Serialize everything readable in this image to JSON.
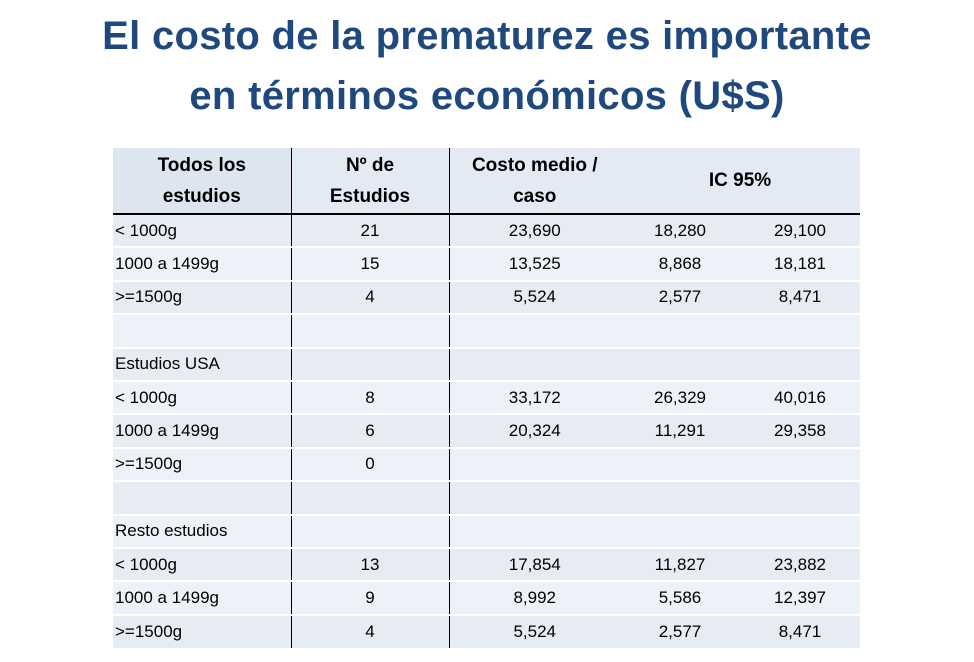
{
  "title": {
    "line1": "El costo de la prematurez es importante",
    "line2": "en términos económicos (U$S)"
  },
  "table": {
    "headers": {
      "col1_line1": "Todos los",
      "col1_line2": "estudios",
      "col2_line1": "Nº de",
      "col2_line2": "Estudios",
      "col3_line1": "Costo medio /",
      "col3_line2": "caso",
      "col4": "IC 95%"
    },
    "rows": [
      {
        "label": "< 1000g",
        "n": "21",
        "mean": "23,690",
        "ci_low": "18,280",
        "ci_high": "29,100"
      },
      {
        "label": "1000 a 1499g",
        "n": "15",
        "mean": "13,525",
        "ci_low": "8,868",
        "ci_high": "18,181"
      },
      {
        "label": ">=1500g",
        "n": "4",
        "mean": "5,524",
        "ci_low": "2,577",
        "ci_high": "8,471"
      },
      {
        "label": "",
        "n": "",
        "mean": "",
        "ci_low": "",
        "ci_high": ""
      },
      {
        "label": "Estudios USA",
        "n": "",
        "mean": "",
        "ci_low": "",
        "ci_high": ""
      },
      {
        "label": "< 1000g",
        "n": "8",
        "mean": "33,172",
        "ci_low": "26,329",
        "ci_high": "40,016"
      },
      {
        "label": "1000 a 1499g",
        "n": "6",
        "mean": "20,324",
        "ci_low": "11,291",
        "ci_high": "29,358"
      },
      {
        "label": ">=1500g",
        "n": "0",
        "mean": "",
        "ci_low": "",
        "ci_high": ""
      },
      {
        "label": "",
        "n": "",
        "mean": "",
        "ci_low": "",
        "ci_high": ""
      },
      {
        "label": "Resto estudios",
        "n": "",
        "mean": "",
        "ci_low": "",
        "ci_high": ""
      },
      {
        "label": "< 1000g",
        "n": "13",
        "mean": "17,854",
        "ci_low": "11,827",
        "ci_high": "23,882"
      },
      {
        "label": "1000 a 1499g",
        "n": "9",
        "mean": "8,992",
        "ci_low": "5,586",
        "ci_high": "12,397"
      },
      {
        "label": ">=1500g",
        "n": "4",
        "mean": "5,524",
        "ci_low": "2,577",
        "ci_high": "8,471"
      }
    ]
  }
}
